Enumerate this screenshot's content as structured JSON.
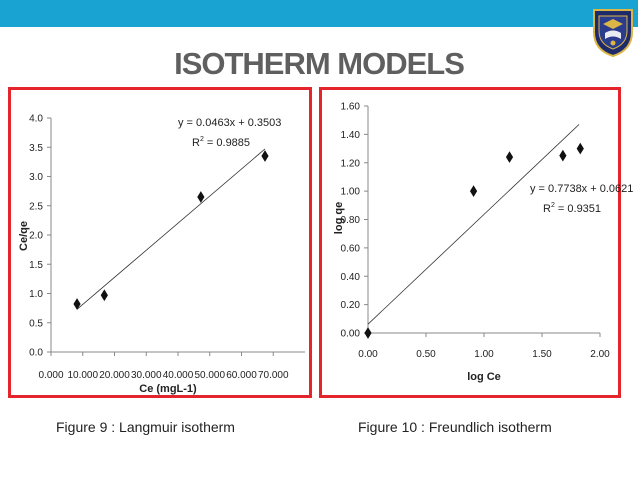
{
  "slide": {
    "title": "ISOTHERM MODELS",
    "band_color": "#19a3d3",
    "frame_color": "#e4252b",
    "logo_icon": "university-crest-icon"
  },
  "captions": {
    "left": "Figure 9 : Langmuir isotherm",
    "right": "Figure 10 : Freundlich isotherm"
  },
  "chart_data": [
    {
      "type": "scatter",
      "xlabel": "Ce (mgL-1)",
      "ylabel": "Ce/qe",
      "xlim": [
        0,
        80
      ],
      "ylim": [
        0,
        4
      ],
      "x_ticks": [
        0,
        10,
        20,
        30,
        40,
        50,
        60,
        70
      ],
      "x_tick_labels": [
        "0.000",
        "10.000",
        "20.000",
        "30.000",
        "40.000",
        "50.000",
        "60.000",
        "70.000"
      ],
      "y_ticks": [
        0,
        0.5,
        1,
        1.5,
        2,
        2.5,
        3,
        3.5,
        4
      ],
      "y_tick_labels": [
        "0.0",
        "0.5",
        "1.0",
        "1.5",
        "2.0",
        "2.5",
        "3.0",
        "3.5",
        "4.0"
      ],
      "series": [
        {
          "points": [
            [
              8.2,
              0.82
            ],
            [
              16.8,
              0.97
            ],
            [
              47.2,
              2.65
            ],
            [
              67.4,
              3.35
            ]
          ]
        }
      ],
      "trendline": {
        "slope": 0.0463,
        "intercept": 0.3503,
        "x_range": [
          8.2,
          67.4
        ]
      },
      "equation": "y = 0.0463x + 0.3503",
      "r2_prefix": "R",
      "r2_value": " = 0.9885",
      "grid": false
    },
    {
      "type": "scatter",
      "xlabel": "log Ce",
      "ylabel": "log qe",
      "xlim": [
        0,
        2
      ],
      "ylim": [
        0,
        1.6
      ],
      "x_ticks": [
        0,
        0.5,
        1,
        1.5,
        2
      ],
      "x_tick_labels": [
        "0.00",
        "0.50",
        "1.00",
        "1.50",
        "2.00"
      ],
      "y_ticks": [
        0,
        0.2,
        0.4,
        0.6,
        0.8,
        1,
        1.2,
        1.4,
        1.6
      ],
      "y_tick_labels": [
        "0.00",
        "0.20",
        "0.40",
        "0.60",
        "0.80",
        "1.00",
        "1.20",
        "1.40",
        "1.60"
      ],
      "series": [
        {
          "points": [
            [
              0,
              0
            ],
            [
              0.91,
              1.0
            ],
            [
              1.22,
              1.24
            ],
            [
              1.68,
              1.25
            ],
            [
              1.83,
              1.3
            ]
          ]
        }
      ],
      "trendline": {
        "slope": 0.7738,
        "intercept": 0.0621,
        "x_range": [
          0,
          1.82
        ]
      },
      "equation": "y = 0.7738x + 0.0621",
      "r2_prefix": "R",
      "r2_value": " = 0.9351",
      "grid": false
    }
  ]
}
